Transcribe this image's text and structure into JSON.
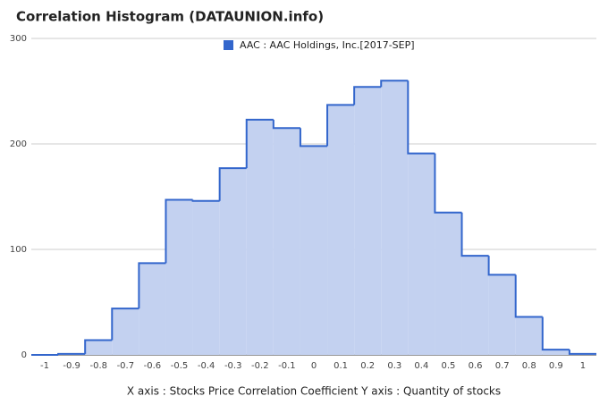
{
  "chart_data": {
    "type": "histogram",
    "title": "Correlation Histogram (DATAUNION.info)",
    "x_axis_label": "X axis : Stocks Price Correlation Coefficient  Y axis : Quantity of stocks",
    "bins": [
      -1.05,
      -0.95,
      -0.85,
      -0.75,
      -0.65,
      -0.55,
      -0.45,
      -0.35,
      -0.25,
      -0.15,
      -0.05,
      0.05,
      0.15,
      0.25,
      0.35,
      0.45,
      0.55,
      0.65,
      0.75,
      0.85,
      0.95,
      1.05
    ],
    "series": [
      {
        "name": "AAC : AAC Holdings, Inc.[2017-SEP]",
        "color": "#3366cc",
        "fill": "#c3d1f0",
        "values": [
          0,
          1,
          14,
          44,
          87,
          147,
          146,
          177,
          223,
          215,
          198,
          237,
          254,
          260,
          191,
          135,
          94,
          76,
          36,
          5,
          1
        ]
      }
    ],
    "xlim": [
      -1.05,
      1.05
    ],
    "xticks": [
      -1,
      -0.9,
      -0.8,
      -0.7,
      -0.6,
      -0.5,
      -0.4,
      -0.3,
      -0.2,
      -0.1,
      0,
      0.1,
      0.2,
      0.3,
      0.4,
      0.5,
      0.6,
      0.7,
      0.8,
      0.9,
      1
    ],
    "ylim": [
      0,
      300
    ],
    "yticks": [
      0,
      100,
      200,
      300
    ],
    "grid": true,
    "legend": "top"
  }
}
